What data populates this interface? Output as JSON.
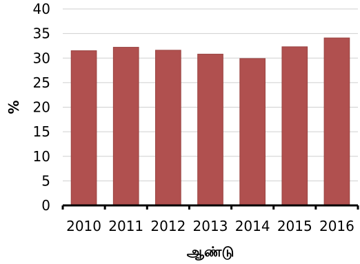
{
  "chart_data": {
    "type": "bar",
    "categories": [
      "2010",
      "2011",
      "2012",
      "2013",
      "2014",
      "2015",
      "2016"
    ],
    "values": [
      31.5,
      32.2,
      31.6,
      30.8,
      29.9,
      32.3,
      34.1
    ],
    "title": "",
    "xlabel": "ஆண்டு",
    "ylabel": "%",
    "ylim": [
      0,
      40
    ],
    "yticks": [
      "0",
      "5",
      "10",
      "15",
      "20",
      "25",
      "30",
      "35",
      "40"
    ],
    "grid": true,
    "legend": "none",
    "bar_color": "#b0504f",
    "bar_edge_color": "#9a4341"
  }
}
